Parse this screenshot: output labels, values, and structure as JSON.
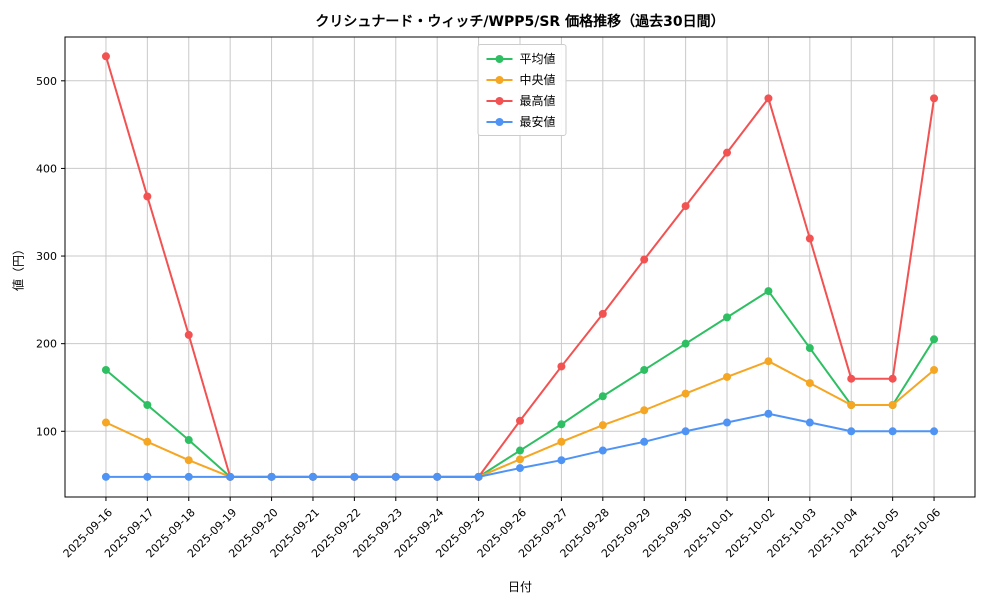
{
  "chart_data": {
    "type": "line",
    "title": "クリシュナード・ウィッチ/WPP5/SR 価格推移（過去30日間）",
    "xlabel": "日付",
    "ylabel": "値（円）",
    "x": [
      "2025-09-16",
      "2025-09-17",
      "2025-09-18",
      "2025-09-19",
      "2025-09-20",
      "2025-09-21",
      "2025-09-22",
      "2025-09-23",
      "2025-09-24",
      "2025-09-25",
      "2025-09-26",
      "2025-09-27",
      "2025-09-28",
      "2025-09-29",
      "2025-09-30",
      "2025-10-01",
      "2025-10-02",
      "2025-10-03",
      "2025-10-04",
      "2025-10-05",
      "2025-10-06"
    ],
    "ylim": [
      25,
      550
    ],
    "yticks": [
      100,
      200,
      300,
      400,
      500
    ],
    "grid": true,
    "legend_position": "upper center",
    "series": [
      {
        "key": "average",
        "name": "平均値",
        "color": "#2fbf63",
        "values": [
          170,
          130,
          90,
          48,
          48,
          48,
          48,
          48,
          48,
          48,
          78,
          108,
          140,
          170,
          200,
          230,
          260,
          195,
          130,
          130,
          205
        ]
      },
      {
        "key": "median",
        "name": "中央値",
        "color": "#f5a623",
        "values": [
          110,
          88,
          67,
          48,
          48,
          48,
          48,
          48,
          48,
          48,
          68,
          88,
          107,
          124,
          143,
          162,
          180,
          155,
          130,
          130,
          170
        ]
      },
      {
        "key": "max",
        "name": "最高値",
        "color": "#f25252",
        "values": [
          528,
          368,
          210,
          48,
          48,
          48,
          48,
          48,
          48,
          48,
          112,
          174,
          234,
          296,
          357,
          418,
          480,
          320,
          160,
          160,
          480
        ]
      },
      {
        "key": "min",
        "name": "最安値",
        "color": "#4f94f5",
        "values": [
          48,
          48,
          48,
          48,
          48,
          48,
          48,
          48,
          48,
          48,
          58,
          67,
          78,
          88,
          100,
          110,
          120,
          110,
          100,
          100,
          100
        ]
      }
    ]
  }
}
